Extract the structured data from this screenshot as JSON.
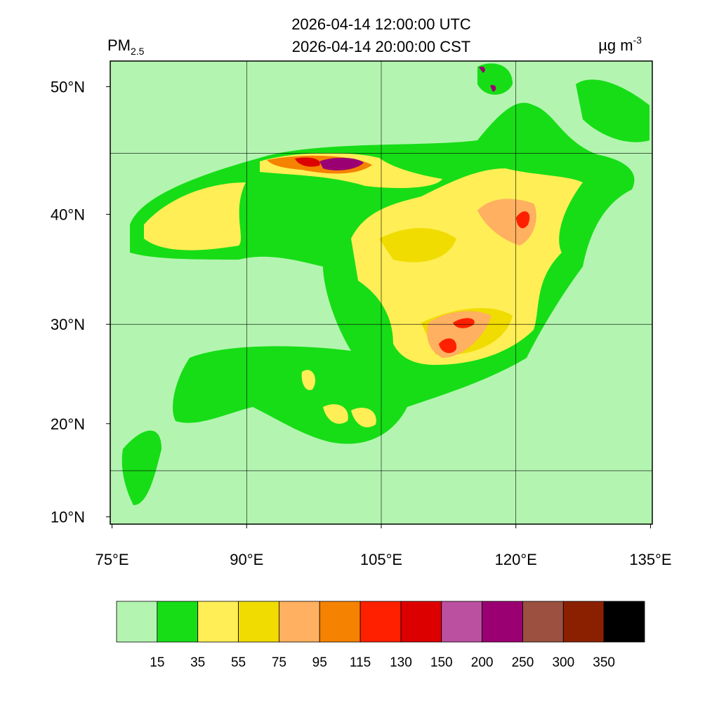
{
  "chart_data": {
    "type": "map",
    "title": [
      "2026-04-14 12:00:00 UTC",
      "2026-04-14 20:00:00 CST"
    ],
    "variable": "PM",
    "variable_sub": "2.5",
    "units": "µg m",
    "units_sup": "-3",
    "projection": "mercator",
    "xlim": [
      74.8,
      135.2
    ],
    "ylim": [
      9.2,
      51.8
    ],
    "xticks": [
      {
        "value": 75,
        "label": "75°E"
      },
      {
        "value": 90,
        "label": "90°E"
      },
      {
        "value": 105,
        "label": "105°E"
      },
      {
        "value": 120,
        "label": "120°E"
      },
      {
        "value": 135,
        "label": "135°E"
      }
    ],
    "yticks": [
      {
        "value": 10,
        "label": "10°N"
      },
      {
        "value": 20,
        "label": "20°N"
      },
      {
        "value": 30,
        "label": "30°N"
      },
      {
        "value": 40,
        "label": "40°N"
      },
      {
        "value": 50,
        "label": "50°N"
      }
    ],
    "grid_lon": [
      90,
      105,
      120
    ],
    "grid_lat": [
      15,
      30,
      45
    ],
    "colorbar": {
      "levels": [
        15,
        35,
        55,
        75,
        95,
        115,
        130,
        150,
        200,
        250,
        300,
        350
      ],
      "colors": [
        "#b3f5b0",
        "#17dd17",
        "#ffee55",
        "#f0dc00",
        "#ffb060",
        "#f58200",
        "#ff2000",
        "#dd0000",
        "#bb4fa0",
        "#9b0072",
        "#9b5040",
        "#8b2000",
        "#000000"
      ]
    }
  }
}
